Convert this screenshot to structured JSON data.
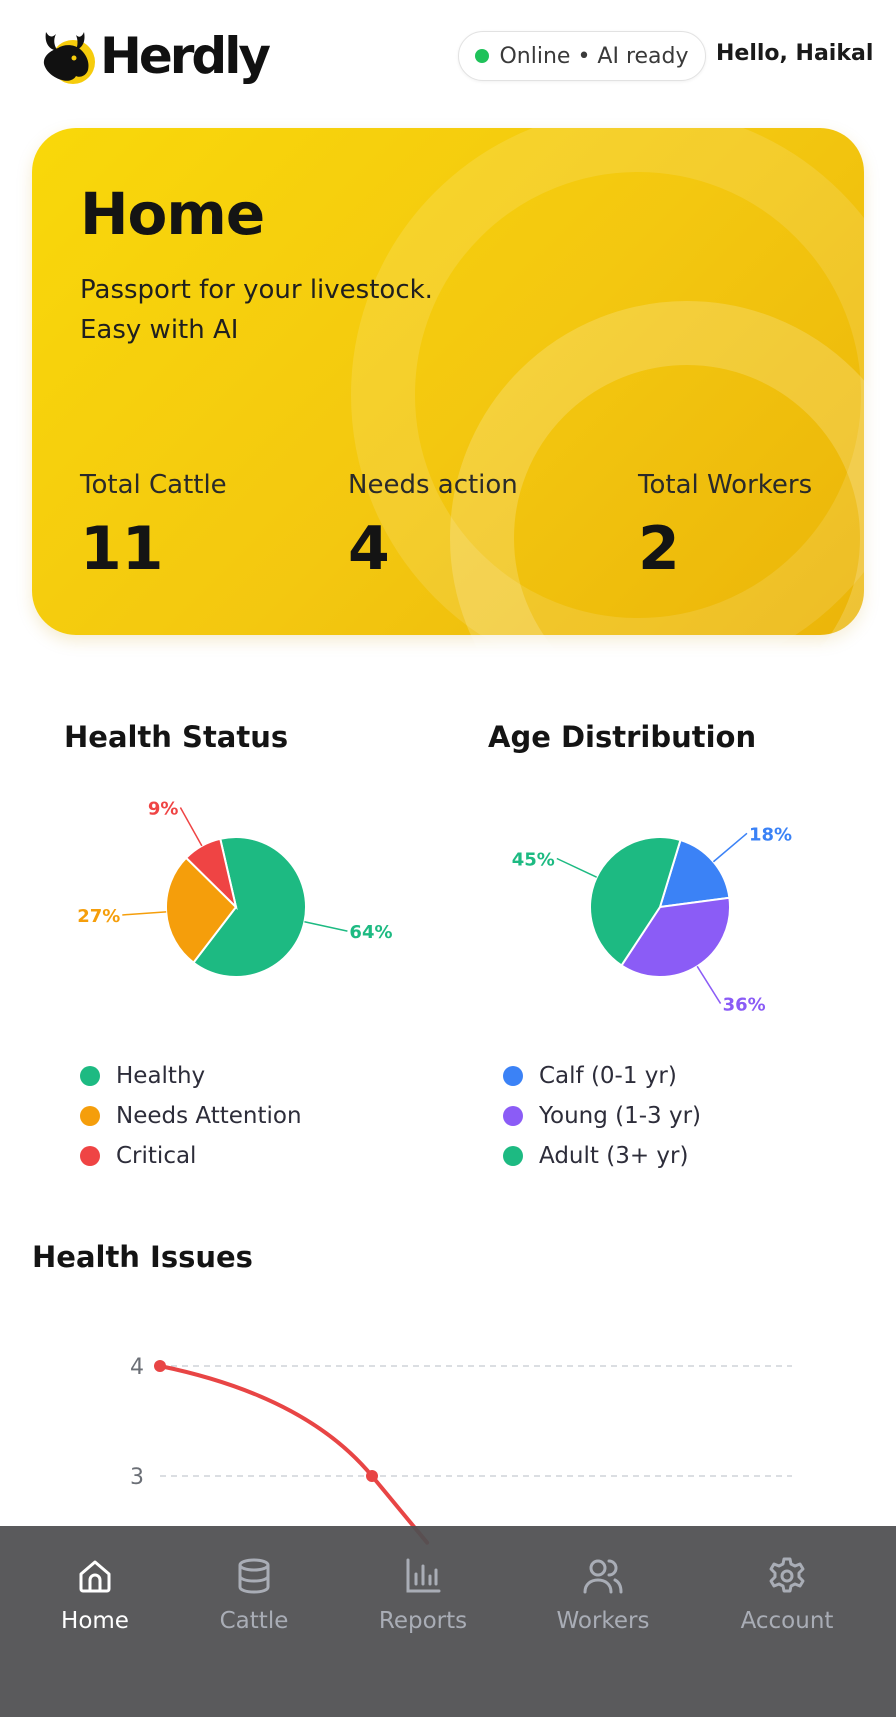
{
  "header": {
    "brand": "Herdly",
    "status": "Online • AI ready",
    "greeting": "Hello, Haikal"
  },
  "hero": {
    "title": "Home",
    "subtitle_line1": "Passport for your livestock.",
    "subtitle_line2": "Easy with AI",
    "stats": [
      {
        "label": "Total Cattle",
        "value": "11"
      },
      {
        "label": "Needs action",
        "value": "4"
      },
      {
        "label": "Total Workers",
        "value": "2"
      }
    ]
  },
  "health_status": {
    "title": "Health Status",
    "legend": [
      "Healthy",
      "Needs Attention",
      "Critical"
    ]
  },
  "age_distribution": {
    "title": "Age Distribution",
    "legend": [
      "Calf (0-1 yr)",
      "Young (1-3 yr)",
      "Adult (3+ yr)"
    ]
  },
  "health_issues": {
    "title": "Health Issues"
  },
  "nav": {
    "items": [
      {
        "label": "Home",
        "icon": "home-icon",
        "active": true
      },
      {
        "label": "Cattle",
        "icon": "database-icon",
        "active": false
      },
      {
        "label": "Reports",
        "icon": "bar-chart-icon",
        "active": false
      },
      {
        "label": "Workers",
        "icon": "users-icon",
        "active": false
      },
      {
        "label": "Account",
        "icon": "gear-icon",
        "active": false
      }
    ]
  },
  "colors": {
    "healthy": "#1dba82",
    "attention": "#f59e0b",
    "critical": "#ef4444",
    "calf": "#3b82f6",
    "young": "#8b5cf6",
    "adult": "#1dba82",
    "line": "#e84545",
    "accent": "#f6cc0c"
  },
  "chart_data": [
    {
      "type": "pie",
      "title": "Health Status",
      "categories": [
        "Healthy",
        "Needs Attention",
        "Critical"
      ],
      "values": [
        64,
        27,
        9
      ],
      "labels": [
        "64%",
        "27%",
        "9%"
      ]
    },
    {
      "type": "pie",
      "title": "Age Distribution",
      "categories": [
        "Calf (0-1 yr)",
        "Young (1-3 yr)",
        "Adult (3+ yr)"
      ],
      "values": [
        18,
        36,
        45
      ],
      "labels": [
        "18%",
        "36%",
        "45%"
      ]
    },
    {
      "type": "line",
      "title": "Health Issues",
      "y_ticks": [
        "4",
        "3"
      ],
      "series": [
        {
          "values": [
            4,
            3
          ]
        }
      ],
      "grid": true
    }
  ]
}
